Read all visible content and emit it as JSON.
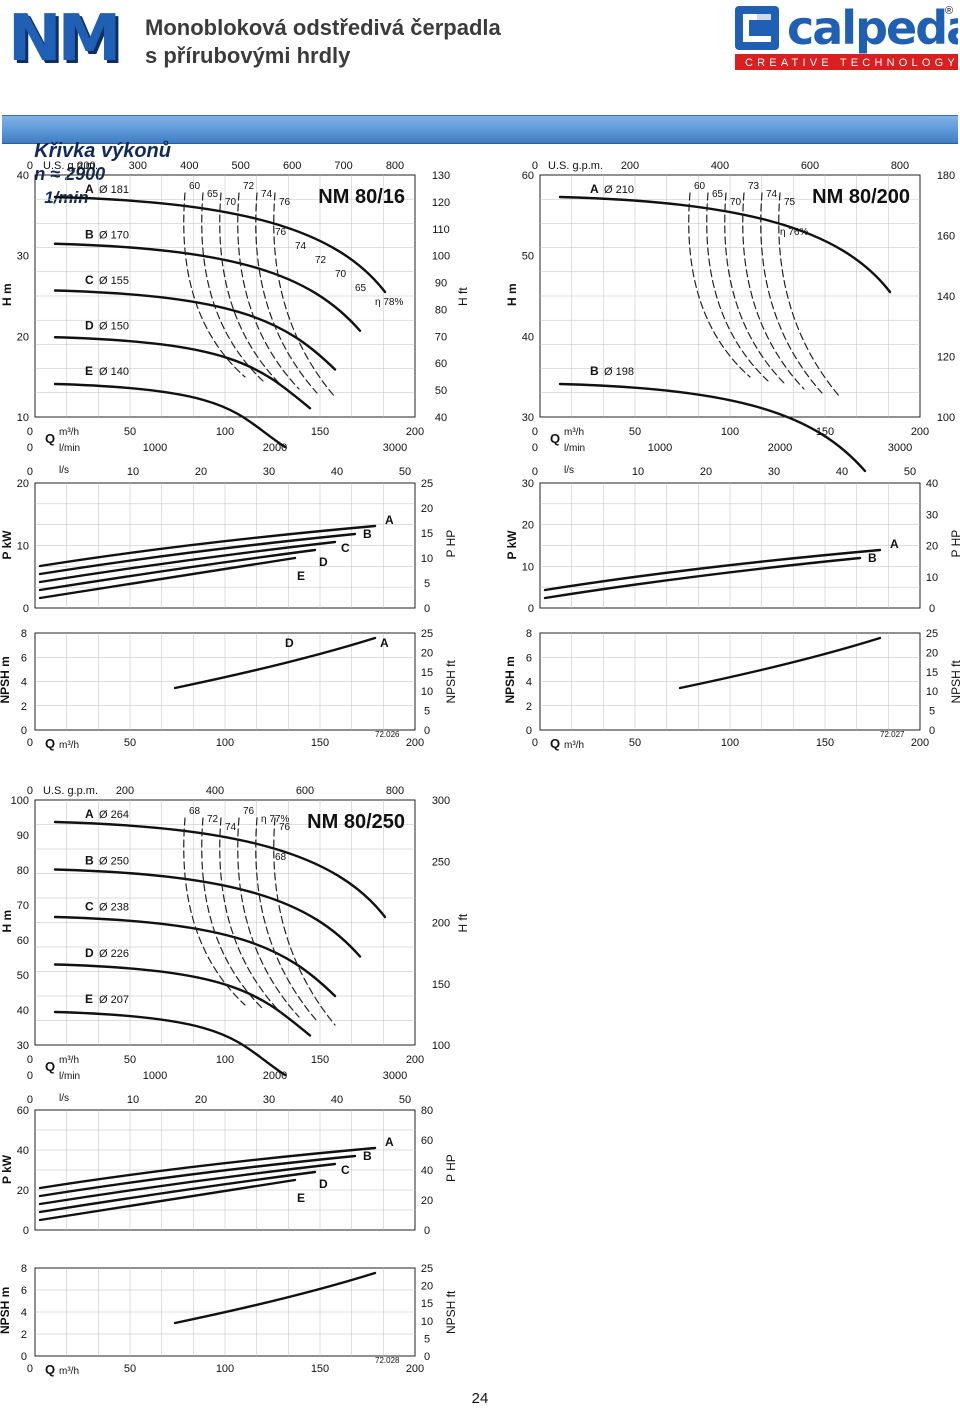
{
  "header": {
    "logo": "NM",
    "title_line1": "Monobloková odstředivá čerpadla",
    "title_line2": "s přírubovými hrdly",
    "brand_name": "calpeda",
    "brand_tagline": "CREATIVE TECHNOLOGY",
    "brand_mark": "®"
  },
  "band": {
    "label": "Křivka výkonů",
    "n": "n ≈ 2900",
    "unit": "1/min"
  },
  "page_number": "24",
  "colors": {
    "brand_blue": "#1f5fb4",
    "band_blue": "#5b97d6",
    "grid": "#bdbdbd",
    "curve": "#111111"
  },
  "charts": [
    {
      "id": "nm80-16",
      "model": "NM 80/16",
      "code": "72.026",
      "H_m_ticks": [
        "40",
        "30",
        "20",
        "10"
      ],
      "H_ft_ticks": [
        "130",
        "120",
        "110",
        "100",
        "90",
        "80",
        "70",
        "60",
        "50",
        "40"
      ],
      "usgpm_label": "U.S. g.p.m.",
      "usgpm_ticks": [
        "0",
        "200",
        "300",
        "400",
        "500",
        "600",
        "700",
        "800"
      ],
      "q_m3h_ticks": [
        "0",
        "50",
        "100",
        "150",
        "200"
      ],
      "q_lmin_ticks": [
        "0",
        "1000",
        "2000",
        "3000"
      ],
      "q_ls_ticks": [
        "0",
        "10",
        "20",
        "30",
        "40",
        "50"
      ],
      "P_kW_ticks": [
        "20",
        "10",
        "0"
      ],
      "P_HP_ticks": [
        "25",
        "20",
        "15",
        "10",
        "5",
        "0"
      ],
      "NPSH_m_ticks": [
        "8",
        "6",
        "4",
        "2",
        "0"
      ],
      "NPSH_ft_ticks": [
        "25",
        "20",
        "15",
        "10",
        "5",
        "0"
      ],
      "impellers": [
        {
          "letter": "A",
          "dia": "Ø 181"
        },
        {
          "letter": "B",
          "dia": "Ø 170"
        },
        {
          "letter": "C",
          "dia": "Ø 155"
        },
        {
          "letter": "D",
          "dia": "Ø 150"
        },
        {
          "letter": "E",
          "dia": "Ø 140"
        }
      ],
      "efficiency_labels": [
        "60",
        "65",
        "70",
        "72",
        "74",
        "76",
        "76",
        "74",
        "72",
        "70",
        "65",
        "η 78%"
      ],
      "power_labels": [
        "A",
        "B",
        "C",
        "D",
        "E"
      ],
      "npsh_labels": [
        "D",
        "A"
      ]
    },
    {
      "id": "nm80-200",
      "model": "NM 80/200",
      "code": "72.027",
      "H_m_ticks": [
        "60",
        "50",
        "40",
        "30"
      ],
      "H_ft_ticks": [
        "180",
        "160",
        "140",
        "120",
        "100"
      ],
      "usgpm_label": "U.S. g.p.m.",
      "usgpm_ticks": [
        "0",
        "200",
        "400",
        "600",
        "800"
      ],
      "q_m3h_ticks": [
        "0",
        "50",
        "100",
        "150",
        "200"
      ],
      "q_lmin_ticks": [
        "0",
        "1000",
        "2000",
        "3000"
      ],
      "q_ls_ticks": [
        "0",
        "10",
        "20",
        "30",
        "40",
        "50"
      ],
      "P_kW_ticks": [
        "30",
        "20",
        "10",
        "0"
      ],
      "P_HP_ticks": [
        "40",
        "30",
        "20",
        "10",
        "0"
      ],
      "NPSH_m_ticks": [
        "8",
        "6",
        "4",
        "2",
        "0"
      ],
      "NPSH_ft_ticks": [
        "25",
        "20",
        "15",
        "10",
        "5",
        "0"
      ],
      "impellers": [
        {
          "letter": "A",
          "dia": "Ø 210"
        },
        {
          "letter": "B",
          "dia": "Ø 198"
        }
      ],
      "efficiency_labels": [
        "60",
        "65",
        "70",
        "73",
        "74",
        "75",
        "η 76%"
      ],
      "power_labels": [
        "A",
        "B"
      ],
      "npsh_labels": []
    },
    {
      "id": "nm80-250",
      "model": "NM 80/250",
      "code": "72.028",
      "H_m_ticks": [
        "100",
        "90",
        "80",
        "70",
        "60",
        "50",
        "40",
        "30"
      ],
      "H_ft_ticks": [
        "300",
        "250",
        "200",
        "150",
        "100"
      ],
      "usgpm_label": "U.S. g.p.m.",
      "usgpm_ticks": [
        "0",
        "200",
        "400",
        "600",
        "800"
      ],
      "q_m3h_ticks": [
        "0",
        "50",
        "100",
        "150",
        "200"
      ],
      "q_lmin_ticks": [
        "0",
        "1000",
        "2000",
        "3000"
      ],
      "q_ls_ticks": [
        "0",
        "10",
        "20",
        "30",
        "40",
        "50"
      ],
      "P_kW_ticks": [
        "60",
        "40",
        "20",
        "0"
      ],
      "P_HP_ticks": [
        "80",
        "60",
        "40",
        "20",
        "0"
      ],
      "NPSH_m_ticks": [
        "8",
        "6",
        "4",
        "2",
        "0"
      ],
      "NPSH_ft_ticks": [
        "25",
        "20",
        "15",
        "10",
        "5",
        "0"
      ],
      "impellers": [
        {
          "letter": "A",
          "dia": "Ø 264"
        },
        {
          "letter": "B",
          "dia": "Ø 250"
        },
        {
          "letter": "C",
          "dia": "Ø 238"
        },
        {
          "letter": "D",
          "dia": "Ø 226"
        },
        {
          "letter": "E",
          "dia": "Ø 207"
        }
      ],
      "efficiency_labels": [
        "68",
        "72",
        "74",
        "76",
        "η 77%",
        "76",
        "68"
      ],
      "power_labels": [
        "A",
        "B",
        "C",
        "D",
        "E"
      ],
      "npsh_labels": []
    }
  ],
  "axis_labels": {
    "H_m": "H m",
    "H_ft": "H ft",
    "P_kW": "P kW",
    "P_HP": "P HP",
    "NPSH_m": "NPSH m",
    "NPSH_ft": "NPSH ft",
    "Q": "Q",
    "m3h": "m³/h",
    "lmin": "l/min",
    "ls": "l/s"
  }
}
